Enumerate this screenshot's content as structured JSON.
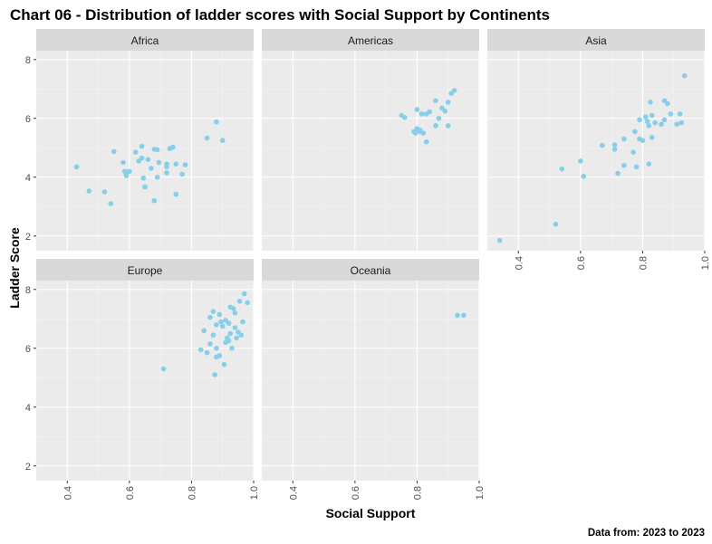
{
  "chart_data": {
    "type": "scatter",
    "title": "Chart 06 - Distribution of ladder scores with Social Support by Continents",
    "xlabel": "Social Support",
    "ylabel": "Ladder Score",
    "caption": "Data from: 2023  to  2023",
    "xlim": [
      0.3,
      1.0
    ],
    "ylim": [
      1.5,
      8.3
    ],
    "x_ticks": [
      0.4,
      0.6,
      0.8,
      1.0
    ],
    "x_tick_labels": [
      "0.4",
      "0.6",
      "0.8",
      "1.0"
    ],
    "y_ticks": [
      2,
      4,
      6,
      8
    ],
    "y_tick_labels": [
      "2",
      "4",
      "6",
      "8"
    ],
    "point_color": "#87CEEB",
    "panel_bg": "#EBEBEB",
    "strip_bg": "#D9D9D9",
    "grid": true,
    "panels": [
      {
        "name": "Africa",
        "points": [
          [
            0.43,
            4.35
          ],
          [
            0.47,
            3.53
          ],
          [
            0.52,
            3.5
          ],
          [
            0.54,
            3.1
          ],
          [
            0.55,
            4.87
          ],
          [
            0.58,
            4.5
          ],
          [
            0.585,
            4.2
          ],
          [
            0.59,
            4.05
          ],
          [
            0.59,
            4.1
          ],
          [
            0.6,
            4.2
          ],
          [
            0.62,
            4.85
          ],
          [
            0.63,
            4.55
          ],
          [
            0.64,
            5.05
          ],
          [
            0.64,
            4.65
          ],
          [
            0.645,
            3.97
          ],
          [
            0.65,
            3.67
          ],
          [
            0.66,
            4.6
          ],
          [
            0.67,
            4.3
          ],
          [
            0.68,
            4.95
          ],
          [
            0.68,
            3.2
          ],
          [
            0.69,
            4.93
          ],
          [
            0.69,
            4.0
          ],
          [
            0.695,
            4.5
          ],
          [
            0.72,
            4.45
          ],
          [
            0.72,
            4.35
          ],
          [
            0.72,
            4.15
          ],
          [
            0.73,
            4.97
          ],
          [
            0.74,
            5.02
          ],
          [
            0.75,
            3.42
          ],
          [
            0.75,
            4.45
          ],
          [
            0.77,
            4.1
          ],
          [
            0.78,
            4.42
          ],
          [
            0.85,
            5.33
          ],
          [
            0.88,
            5.88
          ],
          [
            0.9,
            5.25
          ]
        ]
      },
      {
        "name": "Americas",
        "points": [
          [
            0.75,
            6.1
          ],
          [
            0.76,
            6.03
          ],
          [
            0.79,
            5.55
          ],
          [
            0.795,
            5.5
          ],
          [
            0.8,
            6.3
          ],
          [
            0.8,
            5.65
          ],
          [
            0.81,
            5.6
          ],
          [
            0.81,
            5.55
          ],
          [
            0.815,
            6.15
          ],
          [
            0.82,
            5.5
          ],
          [
            0.83,
            6.15
          ],
          [
            0.83,
            5.2
          ],
          [
            0.84,
            6.22
          ],
          [
            0.86,
            5.75
          ],
          [
            0.86,
            6.6
          ],
          [
            0.87,
            6.0
          ],
          [
            0.88,
            6.35
          ],
          [
            0.89,
            6.25
          ],
          [
            0.9,
            5.75
          ],
          [
            0.9,
            6.55
          ],
          [
            0.91,
            6.85
          ],
          [
            0.92,
            6.95
          ]
        ]
      },
      {
        "name": "Asia",
        "points": [
          [
            0.34,
            1.85
          ],
          [
            0.52,
            2.4
          ],
          [
            0.54,
            4.28
          ],
          [
            0.6,
            4.55
          ],
          [
            0.61,
            4.03
          ],
          [
            0.67,
            5.08
          ],
          [
            0.71,
            5.1
          ],
          [
            0.71,
            4.95
          ],
          [
            0.72,
            4.13
          ],
          [
            0.74,
            5.3
          ],
          [
            0.74,
            4.4
          ],
          [
            0.77,
            4.85
          ],
          [
            0.78,
            4.35
          ],
          [
            0.775,
            5.55
          ],
          [
            0.79,
            5.3
          ],
          [
            0.79,
            5.95
          ],
          [
            0.8,
            5.25
          ],
          [
            0.81,
            6.05
          ],
          [
            0.815,
            5.9
          ],
          [
            0.82,
            5.75
          ],
          [
            0.82,
            4.45
          ],
          [
            0.825,
            6.55
          ],
          [
            0.83,
            6.1
          ],
          [
            0.83,
            5.35
          ],
          [
            0.84,
            5.85
          ],
          [
            0.86,
            5.8
          ],
          [
            0.87,
            6.6
          ],
          [
            0.87,
            5.95
          ],
          [
            0.88,
            6.5
          ],
          [
            0.89,
            6.15
          ],
          [
            0.91,
            5.8
          ],
          [
            0.92,
            6.15
          ],
          [
            0.925,
            5.85
          ],
          [
            0.935,
            7.45
          ]
        ]
      },
      {
        "name": "Europe",
        "points": [
          [
            0.71,
            5.3
          ],
          [
            0.83,
            5.95
          ],
          [
            0.84,
            6.6
          ],
          [
            0.85,
            5.85
          ],
          [
            0.86,
            6.15
          ],
          [
            0.86,
            7.05
          ],
          [
            0.87,
            7.25
          ],
          [
            0.87,
            6.45
          ],
          [
            0.875,
            5.1
          ],
          [
            0.88,
            6.8
          ],
          [
            0.88,
            6.0
          ],
          [
            0.88,
            5.7
          ],
          [
            0.89,
            7.15
          ],
          [
            0.89,
            5.75
          ],
          [
            0.895,
            6.9
          ],
          [
            0.9,
            6.75
          ],
          [
            0.905,
            5.45
          ],
          [
            0.91,
            6.95
          ],
          [
            0.91,
            6.2
          ],
          [
            0.915,
            6.35
          ],
          [
            0.92,
            6.85
          ],
          [
            0.92,
            6.25
          ],
          [
            0.925,
            7.4
          ],
          [
            0.925,
            6.5
          ],
          [
            0.93,
            6.0
          ],
          [
            0.935,
            7.35
          ],
          [
            0.94,
            7.2
          ],
          [
            0.94,
            6.7
          ],
          [
            0.945,
            6.35
          ],
          [
            0.95,
            6.55
          ],
          [
            0.955,
            7.6
          ],
          [
            0.96,
            6.45
          ],
          [
            0.965,
            6.9
          ],
          [
            0.97,
            7.85
          ],
          [
            0.98,
            7.55
          ]
        ]
      },
      {
        "name": "Oceania",
        "points": [
          [
            0.93,
            7.12
          ],
          [
            0.95,
            7.12
          ]
        ]
      }
    ]
  }
}
